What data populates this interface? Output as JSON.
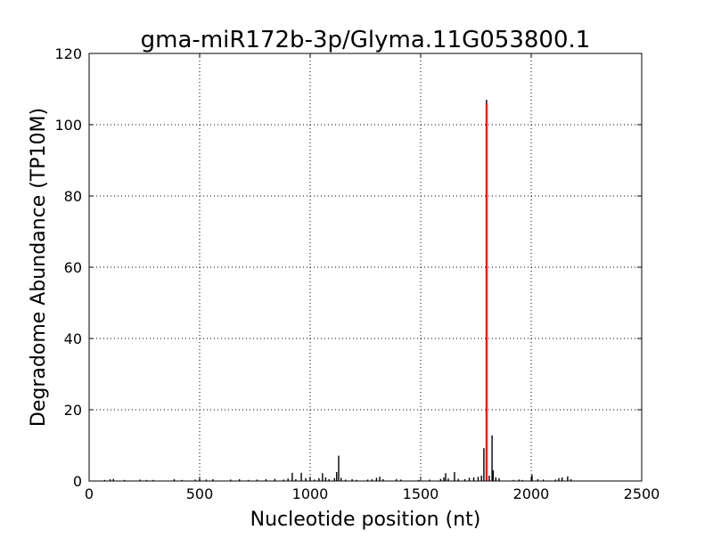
{
  "chart_data": {
    "type": "line",
    "title": "gma-miR172b-3p/Glyma.11G053800.1",
    "xlabel": "Nucleotide position (nt)",
    "ylabel": "Degradome Abundance (TP10M)",
    "xlim": [
      0,
      2500
    ],
    "ylim": [
      0,
      120
    ],
    "xticks": [
      0,
      500,
      1000,
      1500,
      2000,
      2500
    ],
    "yticks": [
      0,
      20,
      40,
      60,
      80,
      100,
      120
    ],
    "grid": true,
    "series": [
      {
        "color": "#000000",
        "points": [
          [
            70,
            0.3
          ],
          [
            95,
            0.5
          ],
          [
            110,
            0.6
          ],
          [
            160,
            0.3
          ],
          [
            230,
            0.4
          ],
          [
            260,
            0.3
          ],
          [
            290,
            0.3
          ],
          [
            385,
            0.5
          ],
          [
            420,
            0.3
          ],
          [
            480,
            0.4
          ],
          [
            500,
            0.6
          ],
          [
            530,
            0.4
          ],
          [
            560,
            0.5
          ],
          [
            640,
            0.4
          ],
          [
            680,
            0.5
          ],
          [
            720,
            0.3
          ],
          [
            760,
            0.4
          ],
          [
            800,
            0.5
          ],
          [
            840,
            0.6
          ],
          [
            880,
            0.4
          ],
          [
            900,
            0.7
          ],
          [
            919,
            2.3
          ],
          [
            935,
            0.5
          ],
          [
            960,
            2.3
          ],
          [
            980,
            0.8
          ],
          [
            1000,
            1.0
          ],
          [
            1020,
            0.4
          ],
          [
            1040,
            0.8
          ],
          [
            1056,
            2.2
          ],
          [
            1070,
            1.0
          ],
          [
            1085,
            0.5
          ],
          [
            1110,
            0.8
          ],
          [
            1120,
            2.5
          ],
          [
            1129,
            7.1
          ],
          [
            1140,
            0.9
          ],
          [
            1160,
            0.4
          ],
          [
            1190,
            0.5
          ],
          [
            1210,
            0.3
          ],
          [
            1260,
            0.4
          ],
          [
            1280,
            0.5
          ],
          [
            1300,
            0.9
          ],
          [
            1315,
            1.2
          ],
          [
            1330,
            0.5
          ],
          [
            1390,
            0.5
          ],
          [
            1410,
            0.4
          ],
          [
            1490,
            0.3
          ],
          [
            1540,
            0.4
          ],
          [
            1590,
            0.6
          ],
          [
            1605,
            1.0
          ],
          [
            1613,
            2.2
          ],
          [
            1625,
            0.7
          ],
          [
            1653,
            2.5
          ],
          [
            1670,
            0.6
          ],
          [
            1700,
            0.5
          ],
          [
            1720,
            0.9
          ],
          [
            1740,
            1.0
          ],
          [
            1760,
            1.2
          ],
          [
            1775,
            1.5
          ],
          [
            1786,
            9.2
          ],
          [
            1798,
            107
          ],
          [
            1810,
            1.5
          ],
          [
            1823,
            12.8
          ],
          [
            1828,
            3.0
          ],
          [
            1840,
            1.0
          ],
          [
            1855,
            0.8
          ],
          [
            1920,
            0.3
          ],
          [
            1945,
            0.4
          ],
          [
            1960,
            0.3
          ],
          [
            2004,
            1.8
          ],
          [
            2030,
            0.5
          ],
          [
            2055,
            0.4
          ],
          [
            2110,
            0.4
          ],
          [
            2125,
            0.8
          ],
          [
            2140,
            1.0
          ],
          [
            2165,
            1.3
          ],
          [
            2180,
            0.5
          ]
        ]
      },
      {
        "color": "#ff0000",
        "points": [
          [
            1798,
            106
          ]
        ]
      }
    ]
  }
}
